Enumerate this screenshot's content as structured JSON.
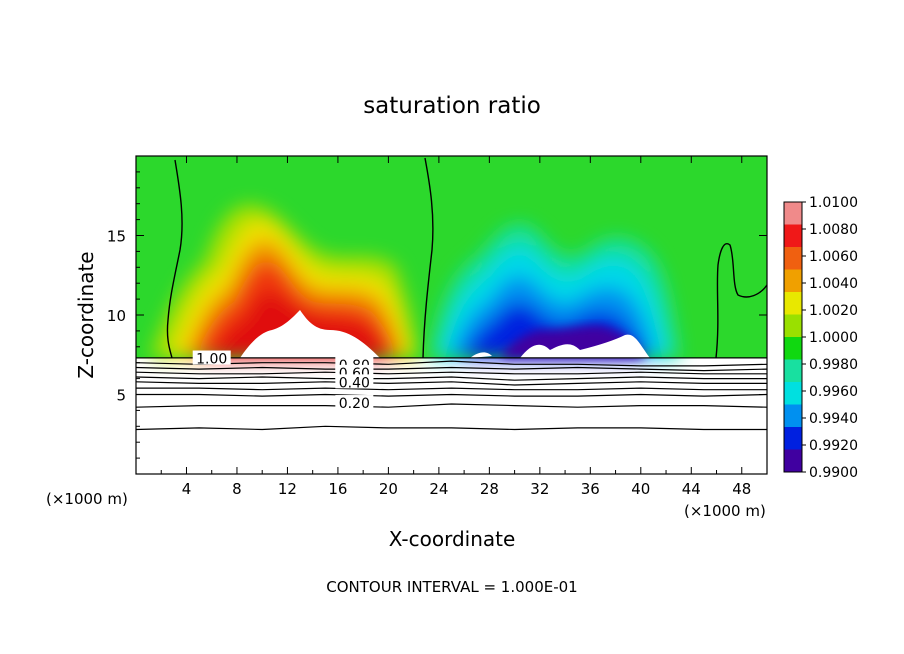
{
  "chart_data": {
    "type": "heatmap",
    "title": "saturation ratio",
    "xlabel": "X-coordinate",
    "ylabel": "Z-coordinate",
    "x_unit_left": "(×1000 m)",
    "x_unit_right": "(×1000 m)",
    "footer": "CONTOUR INTERVAL = 1.000E-01",
    "xlim": [
      0,
      50
    ],
    "ylim": [
      0,
      20
    ],
    "x_ticks": [
      4,
      8,
      12,
      16,
      20,
      24,
      28,
      32,
      36,
      40,
      44,
      48
    ],
    "x_tick_labels": [
      "4",
      "8",
      "12",
      "16",
      "20",
      "24",
      "28",
      "32",
      "36",
      "40",
      "44",
      "48"
    ],
    "y_ticks": [
      5,
      10,
      15
    ],
    "y_tick_labels": [
      "5",
      "10",
      "15"
    ],
    "colorbar": {
      "range": [
        0.99,
        1.01
      ],
      "labels": [
        "1.0100",
        "1.0080",
        "1.0060",
        "1.0040",
        "1.0020",
        "1.0000",
        "0.9980",
        "0.9960",
        "0.9940",
        "0.9920",
        "0.9900"
      ],
      "colors": [
        "#f08a8a",
        "#f01818",
        "#f06010",
        "#f0a000",
        "#e8e800",
        "#9ae000",
        "#10d810",
        "#18e0a0",
        "#00e0e0",
        "#0090f0",
        "#0020e0",
        "#4000a0"
      ]
    },
    "cloud_base_z": 7.3,
    "contour_labels": [
      {
        "text": "1.00",
        "value": 1.0,
        "x": 6.0,
        "z": 7.2
      },
      {
        "text": "0.80",
        "value": 0.8,
        "x": 17.3,
        "z": 6.8
      },
      {
        "text": "0.60",
        "value": 0.6,
        "x": 17.3,
        "z": 6.3
      },
      {
        "text": "0.40",
        "value": 0.4,
        "x": 17.3,
        "z": 5.7
      },
      {
        "text": "0.20",
        "value": 0.2,
        "x": 17.3,
        "z": 4.4
      }
    ],
    "contour_lines": [
      {
        "value": 1.0,
        "z": [
          7.3,
          7.3,
          7.3,
          7.3,
          7.3,
          7.3,
          7.3,
          7.3,
          7.3,
          7.3,
          7.3
        ]
      },
      {
        "value": 0.9,
        "z": [
          7.0,
          6.9,
          7.0,
          7.0,
          6.9,
          7.1,
          6.9,
          6.9,
          6.8,
          6.8,
          6.9
        ]
      },
      {
        "value": 0.8,
        "z": [
          6.7,
          6.6,
          6.7,
          6.6,
          6.6,
          6.7,
          6.6,
          6.7,
          6.6,
          6.5,
          6.6
        ]
      },
      {
        "value": 0.7,
        "z": [
          6.4,
          6.3,
          6.3,
          6.4,
          6.3,
          6.4,
          6.3,
          6.3,
          6.4,
          6.3,
          6.3
        ]
      },
      {
        "value": 0.6,
        "z": [
          6.1,
          6.0,
          6.1,
          6.0,
          6.0,
          6.1,
          5.9,
          6.0,
          6.1,
          6.0,
          6.0
        ]
      },
      {
        "value": 0.5,
        "z": [
          5.8,
          5.7,
          5.7,
          5.8,
          5.7,
          5.8,
          5.6,
          5.7,
          5.8,
          5.7,
          5.7
        ]
      },
      {
        "value": 0.4,
        "z": [
          5.4,
          5.4,
          5.3,
          5.4,
          5.3,
          5.4,
          5.3,
          5.3,
          5.4,
          5.3,
          5.3
        ]
      },
      {
        "value": 0.3,
        "z": [
          5.0,
          5.0,
          4.9,
          5.0,
          4.9,
          5.0,
          4.9,
          4.9,
          5.0,
          4.9,
          5.0
        ]
      },
      {
        "value": 0.2,
        "z": [
          4.2,
          4.3,
          4.3,
          4.3,
          4.2,
          4.4,
          4.3,
          4.2,
          4.3,
          4.3,
          4.2
        ]
      },
      {
        "value": 0.1,
        "z": [
          2.8,
          2.9,
          2.8,
          3.0,
          2.9,
          2.9,
          2.8,
          2.9,
          2.9,
          2.8,
          2.8
        ]
      }
    ],
    "contour_x": [
      0,
      5,
      10,
      15,
      20,
      25,
      30,
      35,
      40,
      45,
      50
    ]
  }
}
